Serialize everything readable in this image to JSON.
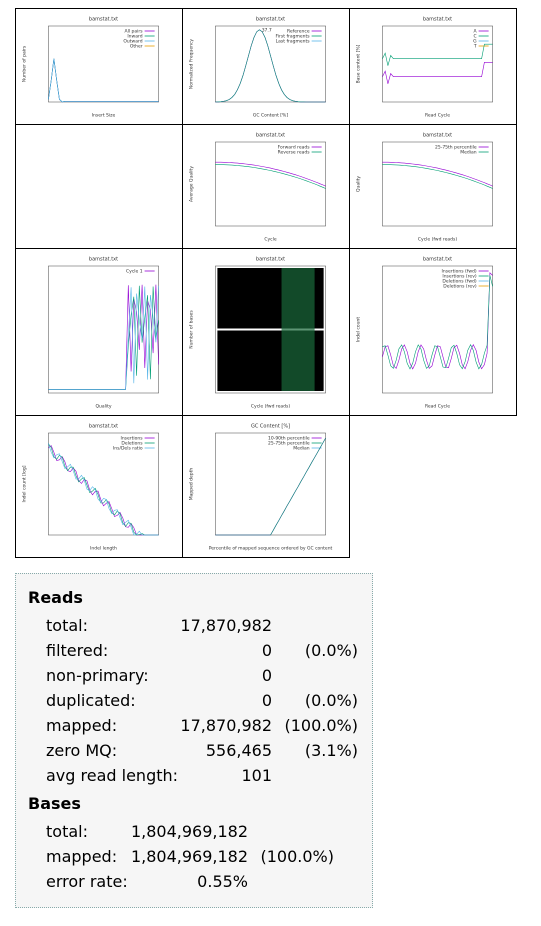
{
  "thumbnails": [
    {
      "title": "bamstat.txt",
      "xlabel": "Insert Size",
      "ylabel": "Number of pairs",
      "legend": [
        "All pairs",
        "Inward",
        "Outward",
        "Other"
      ]
    },
    {
      "title": "bamstat.txt",
      "xlabel": "GC Content [%]",
      "ylabel": "Normalized Frequency",
      "legend": [
        "Reference",
        "First fragments",
        "Last fragments"
      ],
      "annotation": "37.7"
    },
    {
      "title": "bamstat.txt",
      "xlabel": "Read Cycle",
      "ylabel": "Base content [%]",
      "legend": [
        "A",
        "C",
        "G",
        "T"
      ]
    },
    {
      "title": "bamstat.txt",
      "xlabel": "Cycle",
      "ylabel": "Average Quality",
      "legend": [
        "Forward reads",
        "Reverse reads"
      ]
    },
    {
      "title": "bamstat.txt",
      "xlabel": "Cycle (fwd reads)",
      "ylabel": "Quality",
      "legend": [
        "25-75th percentile",
        "Median"
      ]
    },
    {
      "title": "bamstat.txt",
      "xlabel": "Quality",
      "ylabel": "",
      "legend": [
        "Cycle 1"
      ]
    },
    {
      "title": "bamstat.txt",
      "xlabel": "Cycle (fwd reads)",
      "ylabel": "Number of bases",
      "legend": []
    },
    {
      "title": "bamstat.txt",
      "xlabel": "Read Cycle",
      "ylabel": "Indel count",
      "legend": [
        "Insertions (fwd)",
        "Insertions (rev)",
        "Deletions (fwd)",
        "Deletions (rev)"
      ]
    },
    {
      "title": "bamstat.txt",
      "xlabel": "Indel length",
      "ylabel": "Indel count [log]",
      "legend": [
        "Insertions",
        "Deletions",
        "Ins/Dels ratio"
      ]
    },
    {
      "title": "GC Content [%]",
      "xlabel": "Percentile of mapped sequence ordered by GC content",
      "ylabel": "Mapped depth",
      "legend": [
        "10-90th percentile",
        "25-75th percentile",
        "Median"
      ]
    }
  ],
  "stats": {
    "reads": {
      "title": "Reads",
      "rows": [
        {
          "label": "total:",
          "value": "17,870,982"
        },
        {
          "label": "filtered:",
          "value": "0",
          "percent": "(0.0%)"
        },
        {
          "label": "non-primary:",
          "value": "0"
        },
        {
          "label": "duplicated:",
          "value": "0",
          "percent": "(0.0%)"
        },
        {
          "label": "mapped:",
          "value": "17,870,982",
          "percent": "(100.0%)"
        },
        {
          "label": "zero MQ:",
          "value": "556,465",
          "percent": "(3.1%)"
        },
        {
          "label": "avg read length:",
          "value": "101"
        }
      ]
    },
    "bases": {
      "title": "Bases",
      "rows": [
        {
          "label": "total:",
          "value": "1,804,969,182"
        },
        {
          "label": "mapped:",
          "value": "1,804,969,182",
          "percent": "(100.0%)"
        },
        {
          "label": "error rate:",
          "value": "0.55%"
        }
      ]
    }
  }
}
